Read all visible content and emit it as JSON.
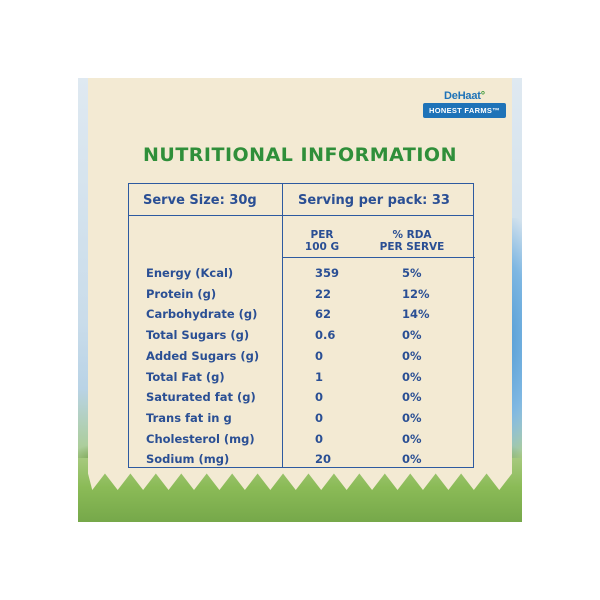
{
  "brand": {
    "name_part1": "DeHaat",
    "name_mark": "°",
    "sub": "HONEST FARMS™"
  },
  "title": "NUTRITIONAL INFORMATION",
  "table": {
    "serve_size": "Serve Size: 30g",
    "serving_per_pack": "Serving per pack: 33",
    "col_per_100g": [
      "PER",
      "100 G"
    ],
    "col_rda": [
      "% RDA",
      "PER SERVE"
    ],
    "rows": [
      {
        "name": "Energy (Kcal)",
        "per_100g": "359",
        "rda": "5%"
      },
      {
        "name": "Protein (g)",
        "per_100g": "22",
        "rda": "12%"
      },
      {
        "name": "Carbohydrate (g)",
        "per_100g": "62",
        "rda": "14%"
      },
      {
        "name": "Total Sugars (g)",
        "per_100g": "0.6",
        "rda": "0%"
      },
      {
        "name": "Added Sugars (g)",
        "per_100g": "0",
        "rda": "0%"
      },
      {
        "name": "Total Fat (g)",
        "per_100g": "1",
        "rda": "0%"
      },
      {
        "name": "Saturated fat (g)",
        "per_100g": "0",
        "rda": "0%"
      },
      {
        "name": "Trans fat in g",
        "per_100g": "0",
        "rda": "0%"
      },
      {
        "name": "Cholesterol (mg)",
        "per_100g": "0",
        "rda": "0%"
      },
      {
        "name": "Sodium (mg)",
        "per_100g": "20",
        "rda": "0%"
      }
    ]
  },
  "colors": {
    "title_green": "#2f8f3a",
    "table_blue": "#2a4f94",
    "card_cream": "#f3ead3",
    "brand_blue": "#1e73b8"
  }
}
